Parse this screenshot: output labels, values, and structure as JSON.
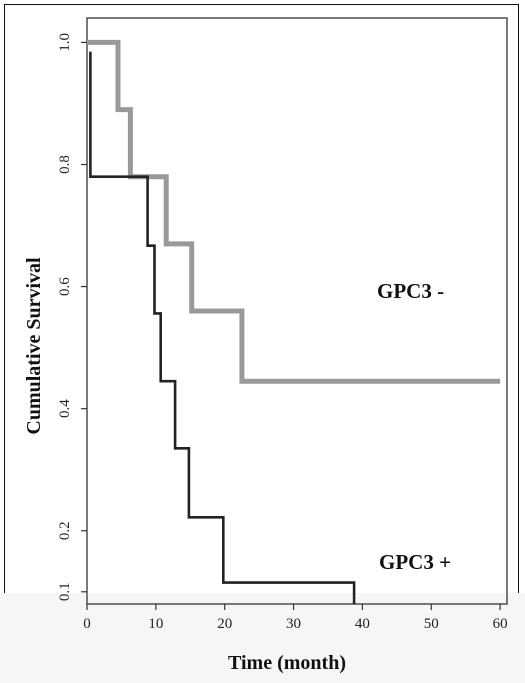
{
  "chart_data": {
    "type": "line",
    "step": true,
    "title": "",
    "xlabel": "Time (month)",
    "ylabel": "Cumulative Survival",
    "xlim": [
      0,
      61
    ],
    "ylim": [
      0.08,
      1.04
    ],
    "x_ticks": [
      0,
      10,
      20,
      30,
      40,
      50,
      60
    ],
    "y_ticks": [
      0.1,
      0.2,
      0.4,
      0.6,
      0.8,
      1.0
    ],
    "y_tick_labels": [
      "0.1",
      "0.2",
      "0.4",
      "0.6",
      "0.8",
      "1.0"
    ],
    "grid": false,
    "series": [
      {
        "name": "GPC3 -",
        "color": "#999999",
        "points": [
          [
            0,
            1.0
          ],
          [
            4.5,
            1.0
          ],
          [
            4.5,
            0.89
          ],
          [
            6.3,
            0.89
          ],
          [
            6.3,
            0.78
          ],
          [
            11.5,
            0.78
          ],
          [
            11.5,
            0.67
          ],
          [
            15.2,
            0.67
          ],
          [
            15.2,
            0.56
          ],
          [
            22.5,
            0.56
          ],
          [
            22.5,
            0.445
          ],
          [
            60,
            0.445
          ]
        ]
      },
      {
        "name": "GPC3 +",
        "color": "#222222",
        "points": [
          [
            0.5,
            0.985
          ],
          [
            0.5,
            0.78
          ],
          [
            8.8,
            0.78
          ],
          [
            8.8,
            0.667
          ],
          [
            9.8,
            0.667
          ],
          [
            9.8,
            0.556
          ],
          [
            10.7,
            0.556
          ],
          [
            10.7,
            0.445
          ],
          [
            12.8,
            0.445
          ],
          [
            12.8,
            0.335
          ],
          [
            14.8,
            0.335
          ],
          [
            14.8,
            0.222
          ],
          [
            19.8,
            0.222
          ],
          [
            19.8,
            0.115
          ],
          [
            38.8,
            0.115
          ],
          [
            38.8,
            0.08
          ]
        ]
      }
    ]
  }
}
